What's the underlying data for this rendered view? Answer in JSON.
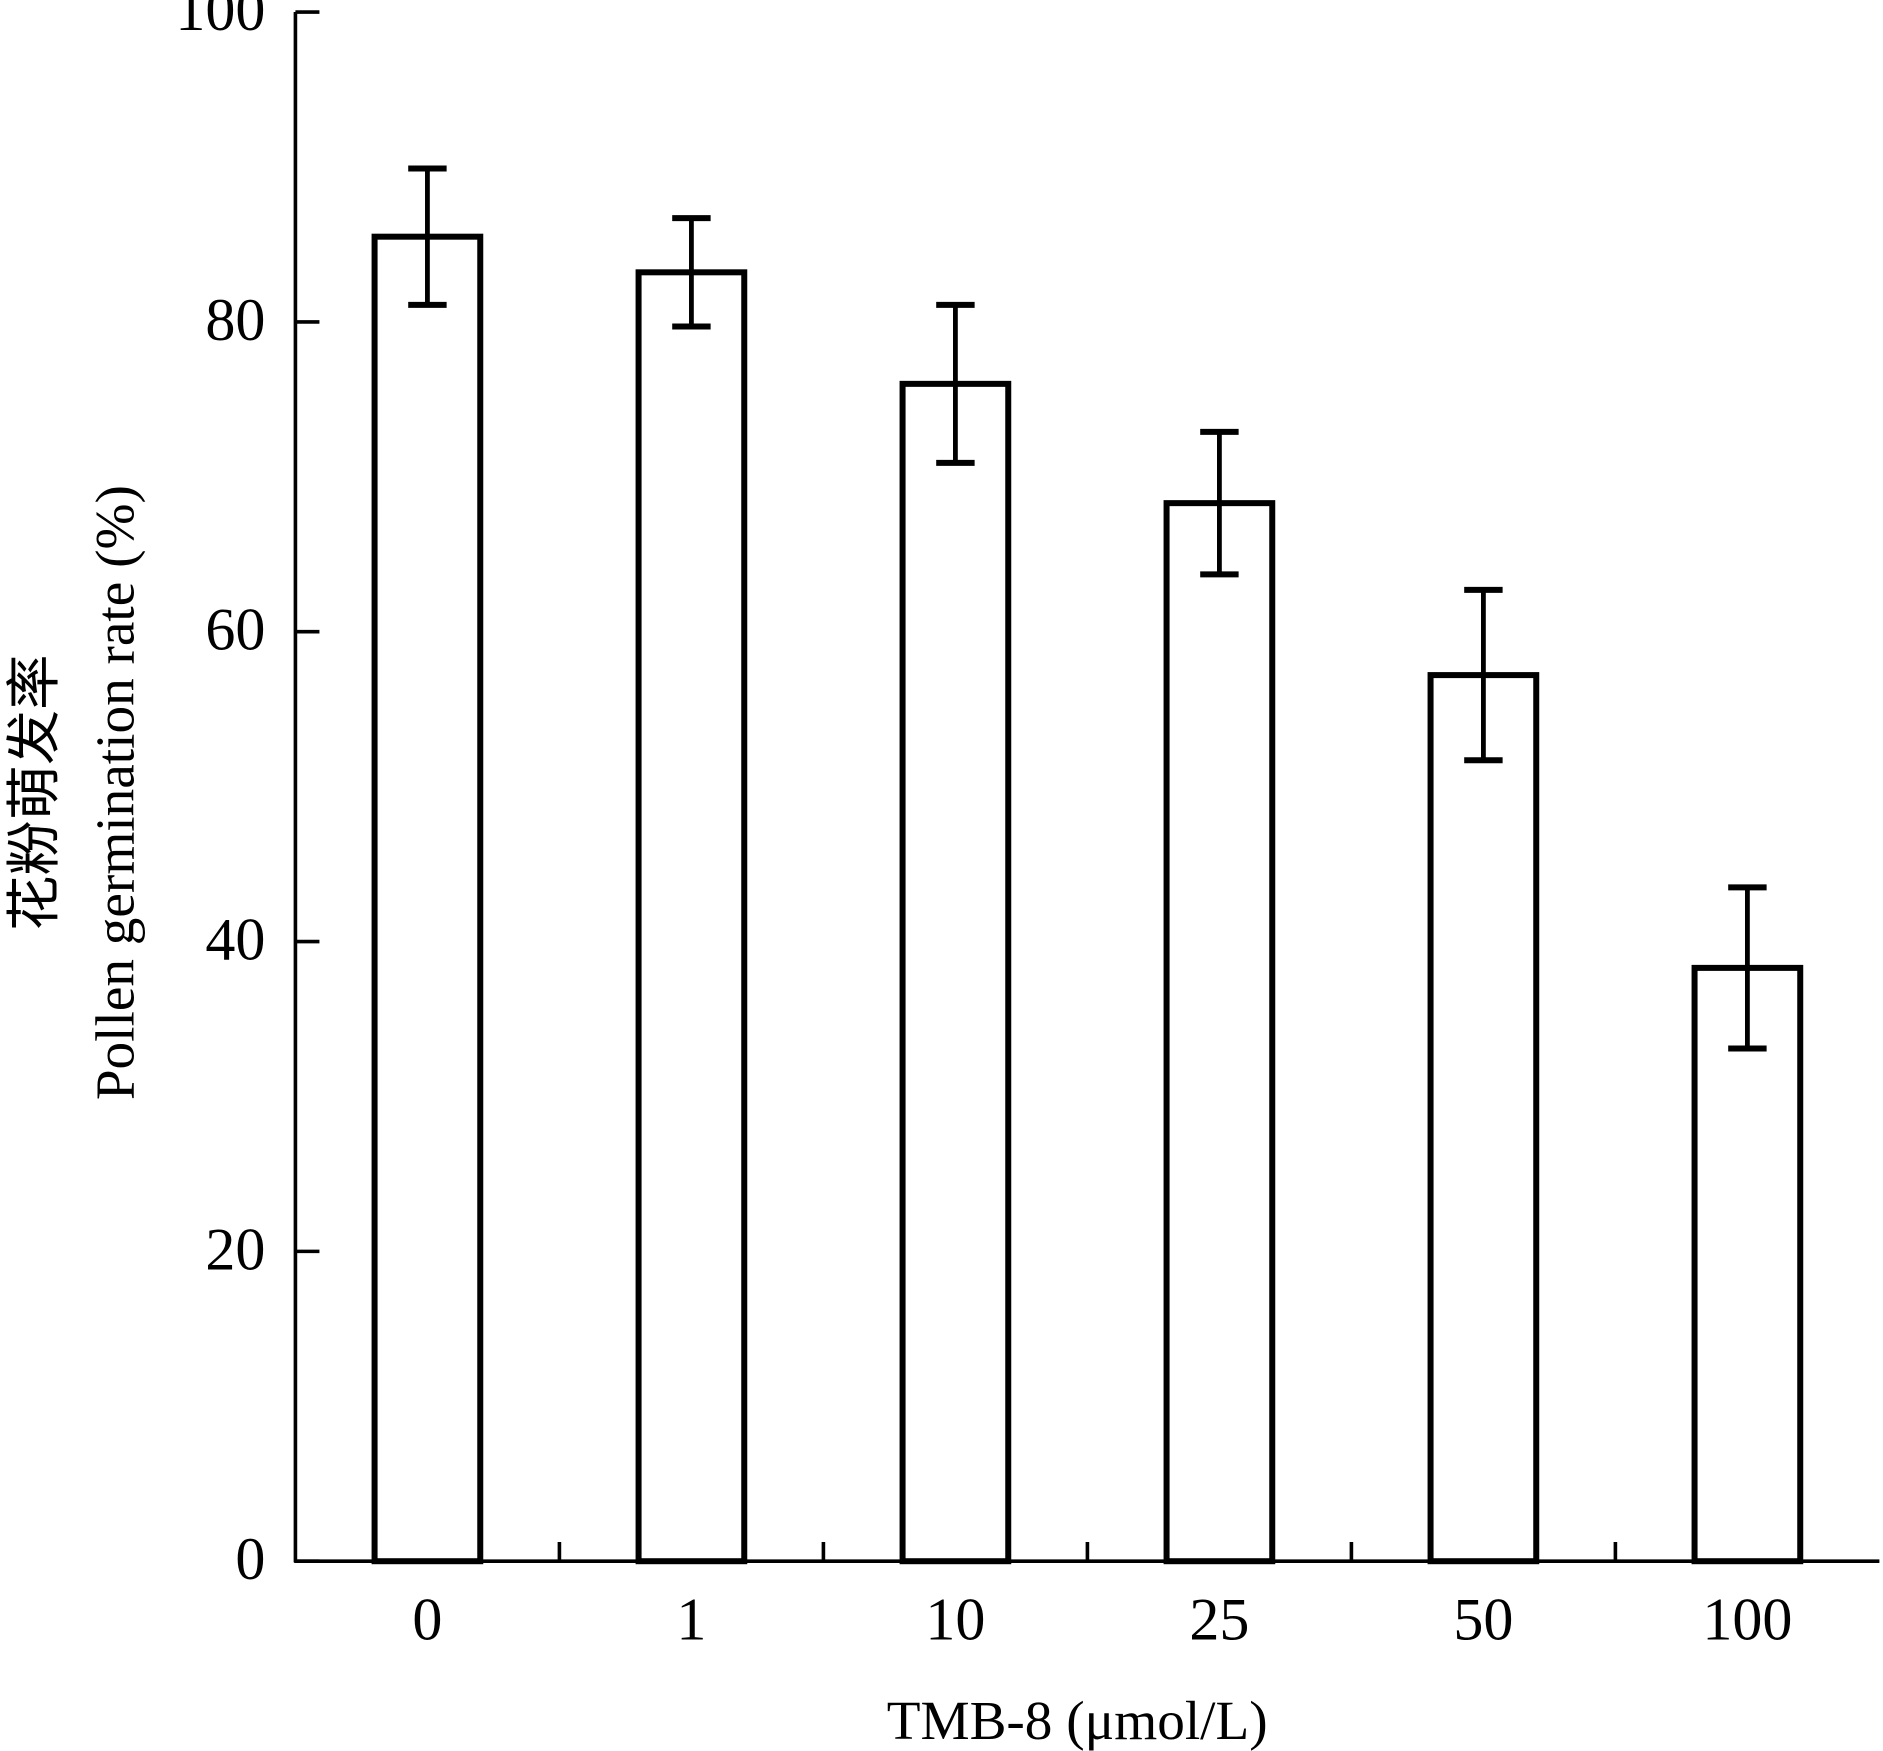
{
  "chart_data": {
    "type": "bar",
    "categories": [
      "0",
      "1",
      "10",
      "25",
      "50",
      "100"
    ],
    "values": [
      85.5,
      83.2,
      76.0,
      68.3,
      57.2,
      38.3
    ],
    "errors": [
      4.4,
      3.5,
      5.1,
      4.6,
      5.5,
      5.2
    ],
    "xlabel": "TMB-8 (μmol/L)",
    "ylabel_cn": "花粉萌发率",
    "ylabel": "Pollen germination rate (%)",
    "ylim": [
      0,
      100
    ],
    "yticks": [
      "0",
      "20",
      "40",
      "60",
      "80",
      "100"
    ],
    "grid": false,
    "bar_fill": "#ffffff",
    "bar_stroke": "#000000"
  }
}
